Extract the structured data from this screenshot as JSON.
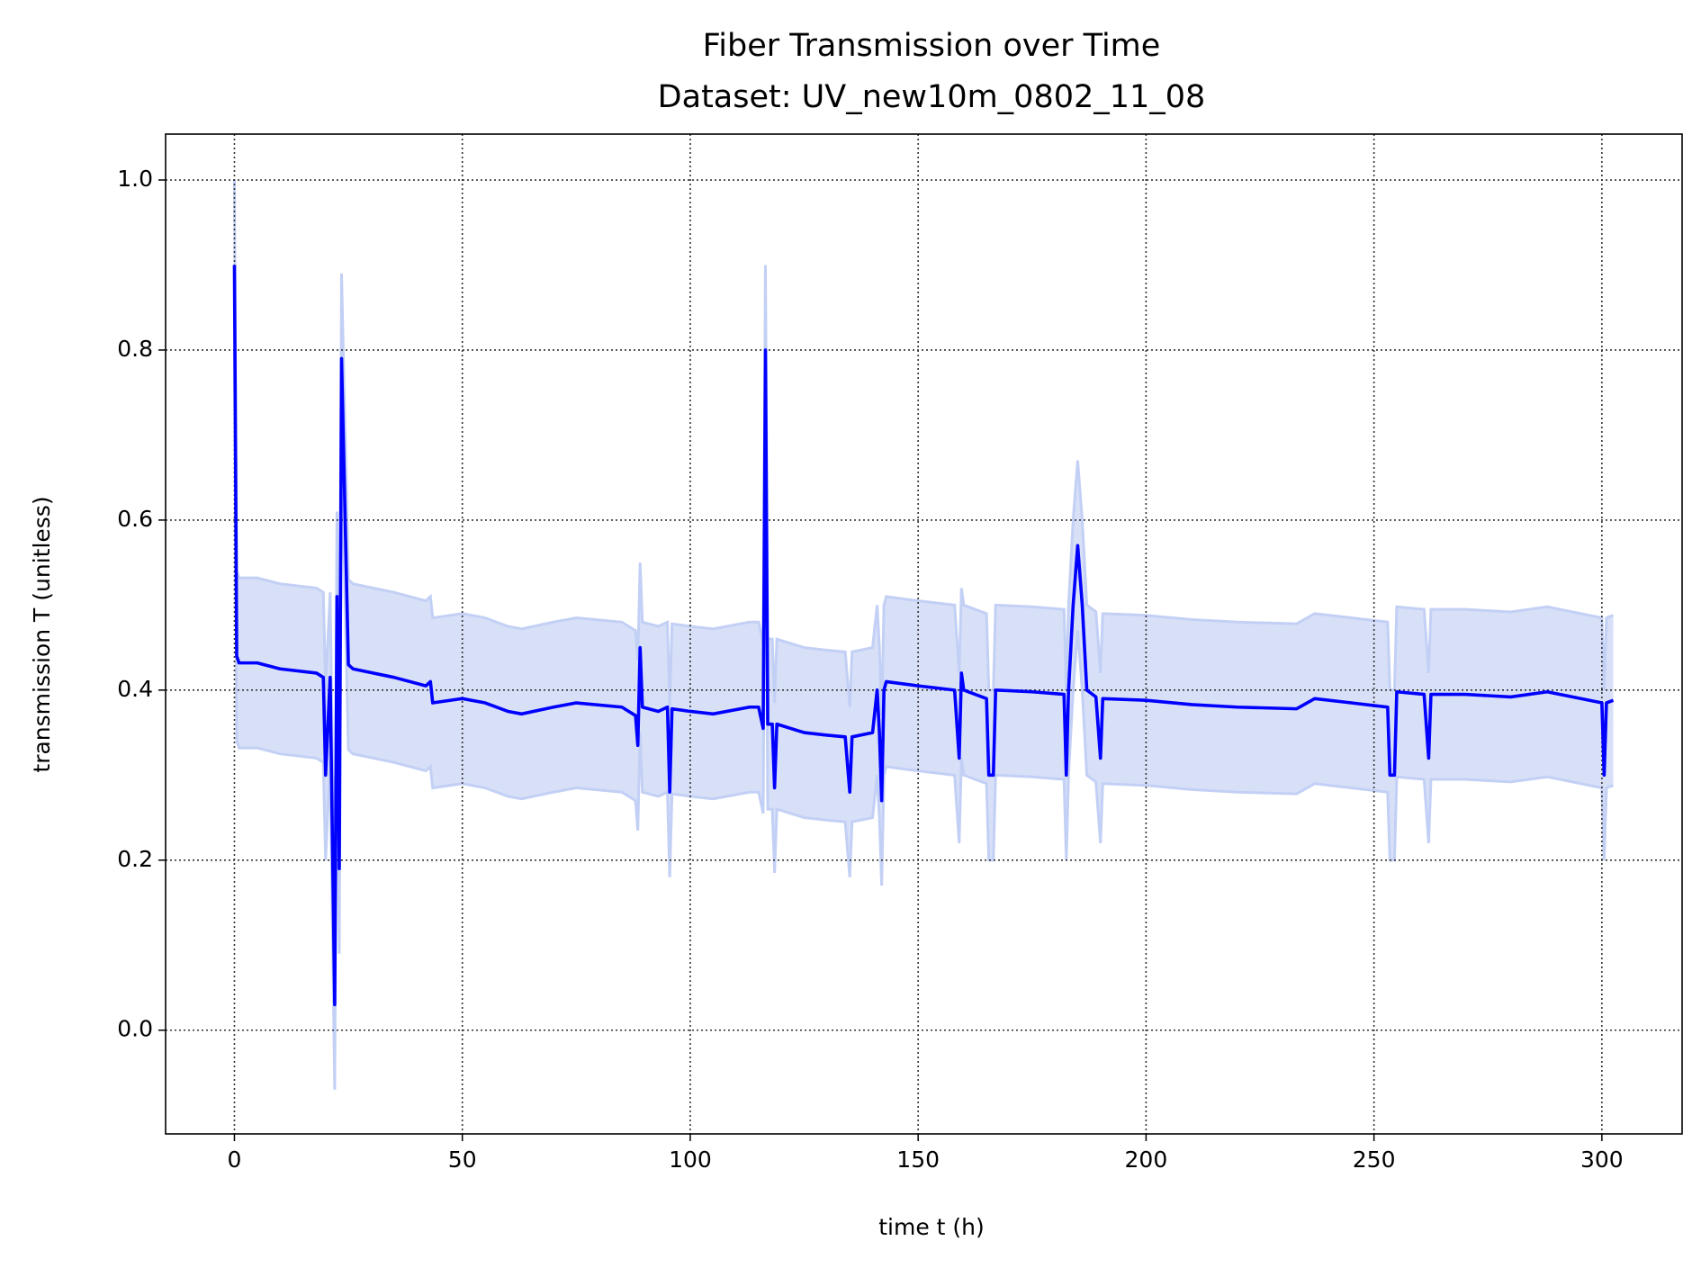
{
  "chart_data": {
    "type": "line",
    "title": "Fiber Transmission over Time",
    "subtitle": "Dataset: UV_new10m_0802_11_08",
    "x_label": "time t (h)",
    "y_label": "transmission T (unitless)",
    "xlim": [
      -15.1,
      317.6
    ],
    "ylim": [
      -0.122,
      1.054
    ],
    "xticks": [
      0,
      50,
      100,
      150,
      200,
      250,
      300
    ],
    "yticks": [
      {
        "value": 0,
        "label": "0.0"
      },
      0.2,
      0.4,
      0.6,
      0.8,
      {
        "value": 1,
        "label": "1.0"
      }
    ],
    "grid": true,
    "x": [
      0,
      0.5,
      1,
      5,
      10,
      18,
      19.5,
      20,
      21,
      22,
      22.5,
      23,
      23.5,
      25,
      26,
      35,
      42,
      43,
      43.5,
      50,
      55,
      60,
      63,
      70,
      75,
      85,
      88,
      88.5,
      89,
      89.5,
      93,
      95,
      95.5,
      96,
      100,
      105,
      113,
      115,
      116,
      116.5,
      117,
      118,
      118.5,
      119,
      125,
      130,
      134,
      135,
      135.5,
      140,
      141,
      141.5,
      142,
      142.5,
      143,
      150,
      158,
      159,
      159.5,
      160,
      165,
      165.5,
      166.5,
      167,
      175,
      182,
      182.5,
      183,
      184,
      185,
      186,
      187,
      189,
      190,
      190.5,
      200,
      210,
      220,
      233,
      237,
      245,
      253,
      253.5,
      254.5,
      255,
      261,
      262,
      262.5,
      270,
      280,
      288,
      300,
      300.5,
      301,
      302.5
    ],
    "series": [
      {
        "color": "#0000ff",
        "values": [
          0.9,
          0.44,
          0.432,
          0.432,
          0.425,
          0.42,
          0.415,
          0.3,
          0.415,
          0.03,
          0.51,
          0.19,
          0.79,
          0.43,
          0.425,
          0.415,
          0.405,
          0.41,
          0.385,
          0.39,
          0.385,
          0.375,
          0.372,
          0.38,
          0.385,
          0.38,
          0.37,
          0.335,
          0.45,
          0.38,
          0.375,
          0.38,
          0.28,
          0.378,
          0.375,
          0.372,
          0.38,
          0.38,
          0.355,
          0.8,
          0.36,
          0.36,
          0.285,
          0.36,
          0.35,
          0.347,
          0.345,
          0.28,
          0.345,
          0.35,
          0.4,
          0.35,
          0.27,
          0.4,
          0.41,
          0.405,
          0.4,
          0.32,
          0.42,
          0.4,
          0.39,
          0.3,
          0.3,
          0.4,
          0.398,
          0.395,
          0.3,
          0.4,
          0.5,
          0.57,
          0.5,
          0.4,
          0.392,
          0.32,
          0.39,
          0.388,
          0.383,
          0.38,
          0.378,
          0.39,
          0.385,
          0.38,
          0.3,
          0.3,
          0.398,
          0.395,
          0.32,
          0.395,
          0.395,
          0.392,
          0.398,
          0.385,
          0.3,
          0.385,
          0.388
        ]
      }
    ],
    "band": {
      "color": "#d8e0f8",
      "edge_color": "#c3d0f5",
      "lower": [
        0.8,
        0.34,
        0.332,
        0.332,
        0.325,
        0.32,
        0.315,
        0.2,
        0.315,
        -0.07,
        0.41,
        0.09,
        0.69,
        0.33,
        0.325,
        0.315,
        0.305,
        0.31,
        0.285,
        0.29,
        0.285,
        0.275,
        0.272,
        0.28,
        0.285,
        0.28,
        0.27,
        0.235,
        0.35,
        0.28,
        0.275,
        0.28,
        0.18,
        0.278,
        0.275,
        0.272,
        0.28,
        0.28,
        0.255,
        0.7,
        0.26,
        0.26,
        0.185,
        0.26,
        0.25,
        0.247,
        0.245,
        0.18,
        0.245,
        0.25,
        0.3,
        0.25,
        0.17,
        0.3,
        0.31,
        0.305,
        0.3,
        0.22,
        0.32,
        0.3,
        0.29,
        0.2,
        0.2,
        0.3,
        0.298,
        0.295,
        0.2,
        0.3,
        0.4,
        0.47,
        0.4,
        0.3,
        0.292,
        0.22,
        0.29,
        0.288,
        0.283,
        0.28,
        0.278,
        0.29,
        0.285,
        0.28,
        0.2,
        0.2,
        0.298,
        0.295,
        0.22,
        0.295,
        0.295,
        0.292,
        0.298,
        0.285,
        0.2,
        0.285,
        0.288
      ],
      "upper": [
        1.0,
        0.54,
        0.532,
        0.532,
        0.525,
        0.52,
        0.515,
        0.4,
        0.515,
        0.13,
        0.61,
        0.29,
        0.89,
        0.53,
        0.525,
        0.515,
        0.505,
        0.51,
        0.485,
        0.49,
        0.485,
        0.475,
        0.472,
        0.48,
        0.485,
        0.48,
        0.47,
        0.435,
        0.55,
        0.48,
        0.475,
        0.48,
        0.38,
        0.478,
        0.475,
        0.472,
        0.48,
        0.48,
        0.455,
        0.9,
        0.46,
        0.46,
        0.385,
        0.46,
        0.45,
        0.447,
        0.445,
        0.38,
        0.445,
        0.45,
        0.5,
        0.45,
        0.37,
        0.5,
        0.51,
        0.505,
        0.5,
        0.42,
        0.52,
        0.5,
        0.49,
        0.4,
        0.4,
        0.5,
        0.498,
        0.495,
        0.4,
        0.5,
        0.6,
        0.67,
        0.6,
        0.5,
        0.492,
        0.42,
        0.49,
        0.488,
        0.483,
        0.48,
        0.478,
        0.49,
        0.485,
        0.48,
        0.4,
        0.4,
        0.498,
        0.495,
        0.42,
        0.495,
        0.495,
        0.492,
        0.498,
        0.485,
        0.4,
        0.485,
        0.488
      ]
    }
  }
}
